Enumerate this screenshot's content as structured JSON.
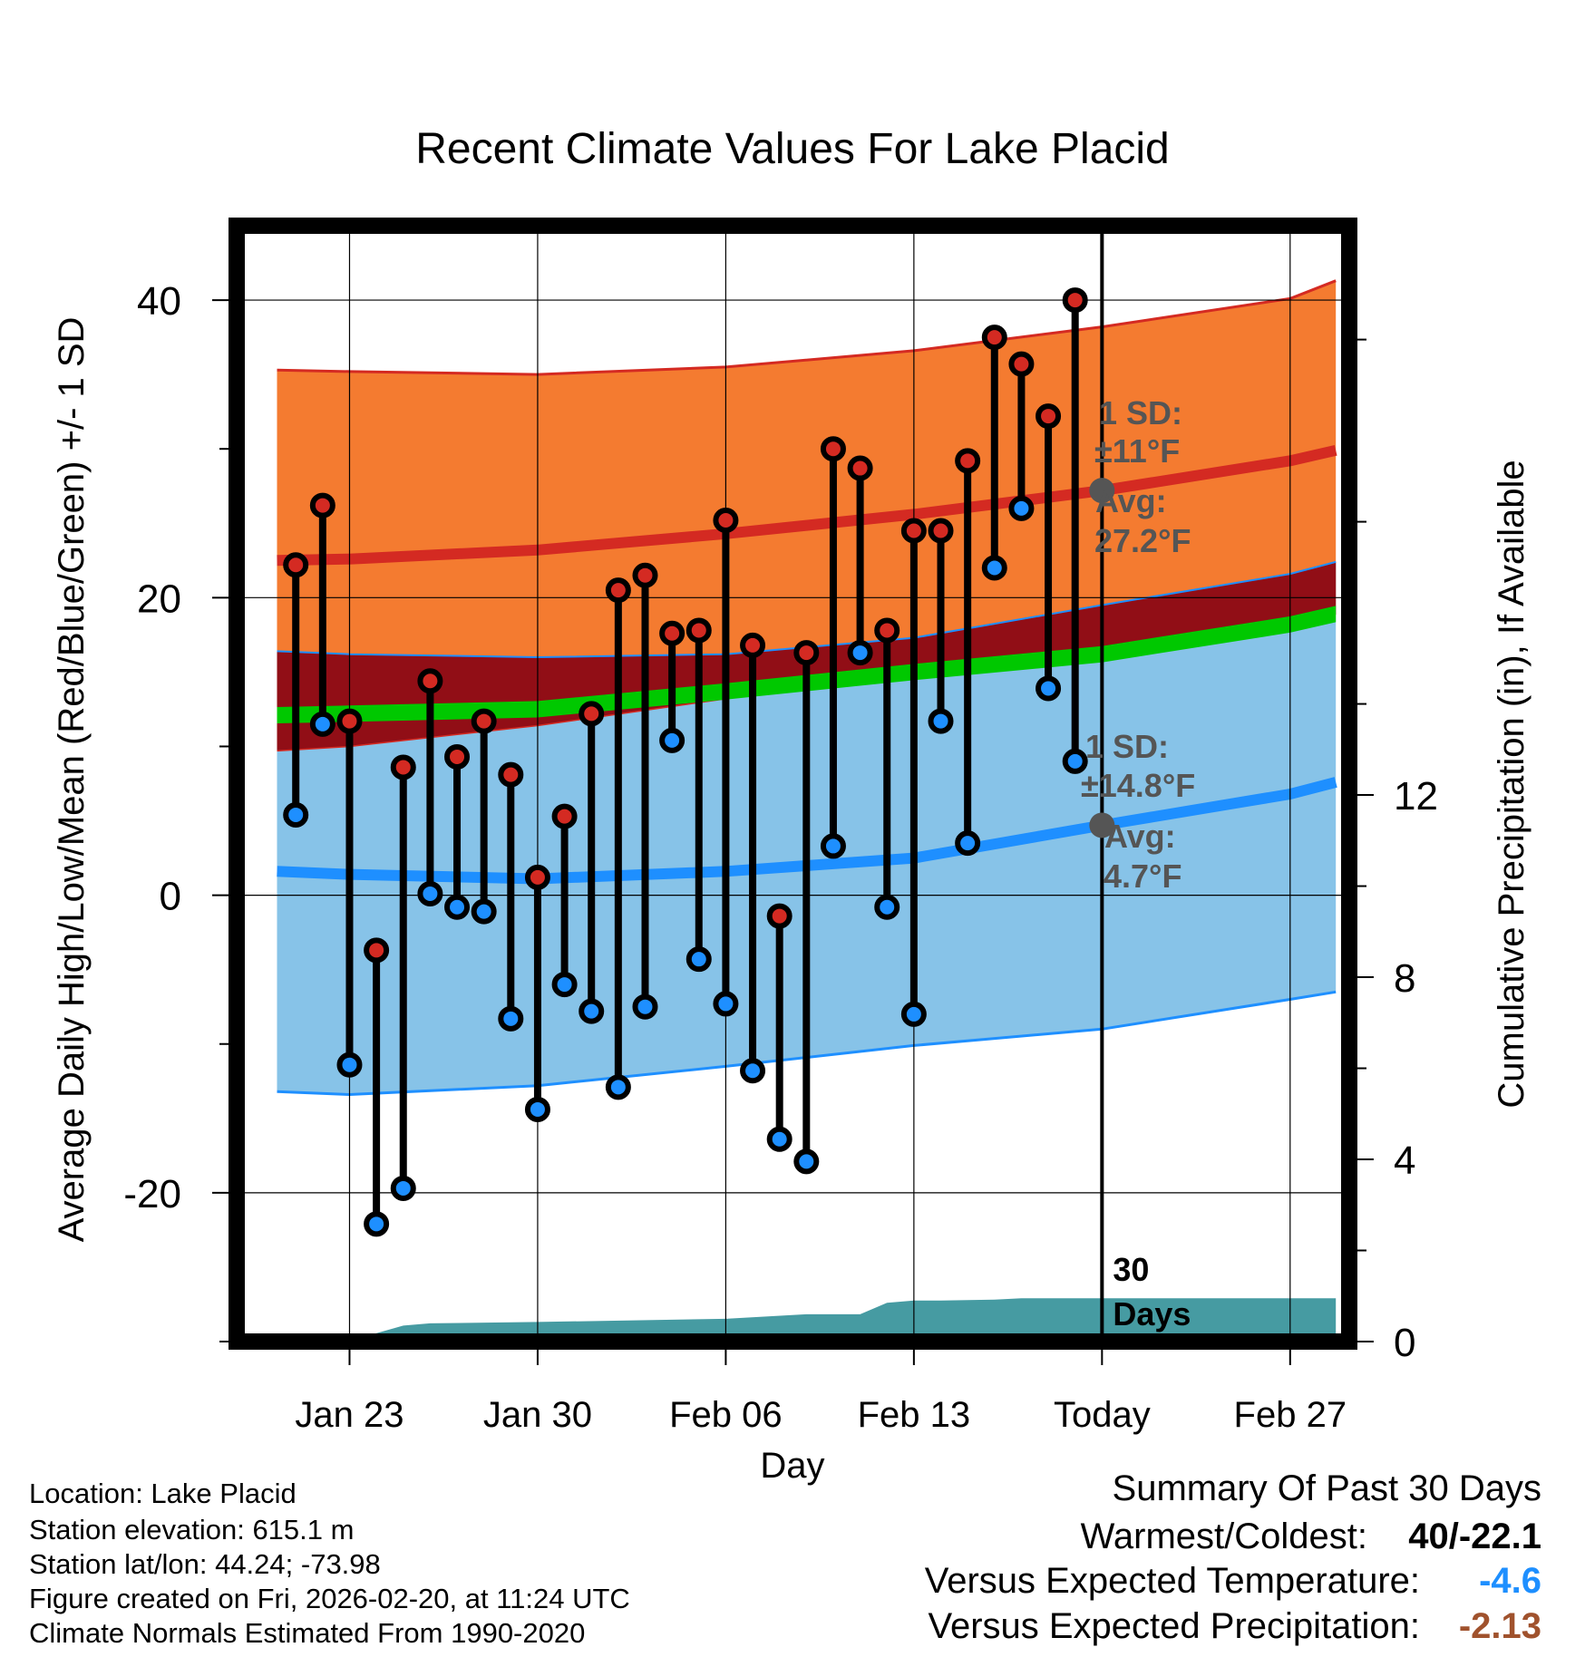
{
  "chart_data": {
    "type": "line",
    "title": "Recent Climate Values For Lake Placid",
    "xlabel": "Day",
    "ylabel": "Average Daily High/Low/Mean (Red/Blue/Green) +/- 1 SD",
    "y2label": "Cumulative Precipitation (in), If Available",
    "xlim": [
      -4.2,
      37.2
    ],
    "ylim": [
      -30,
      45
    ],
    "y2lim": [
      0,
      24.5
    ],
    "yticks": [
      -20,
      0,
      20,
      40
    ],
    "ytick_labels": [
      "-20",
      "0",
      "20",
      "40"
    ],
    "y2ticks": [
      0,
      4,
      8,
      12
    ],
    "y2tick_labels": [
      "0",
      "4",
      "8",
      "12"
    ],
    "xticks": [
      0,
      7,
      14,
      21,
      28,
      35
    ],
    "xtick_labels": [
      "Jan 23",
      "Jan 30",
      "Feb 06",
      "Feb 13",
      "Today",
      "Feb 27"
    ],
    "today_x": 28,
    "today_label": [
      "30",
      "Days"
    ],
    "normals_x": [
      -2.7,
      0,
      7,
      14,
      21,
      28,
      35,
      36.7
    ],
    "normal_high": [
      22.5,
      22.6,
      23.2,
      24.3,
      25.6,
      27.2,
      29.2,
      29.9
    ],
    "normal_high_upper": [
      35.3,
      35.2,
      35.0,
      35.5,
      36.6,
      38.2,
      40.1,
      41.3
    ],
    "normal_high_lower": [
      9.7,
      10.0,
      11.4,
      13.2,
      14.8,
      16.2,
      18.2,
      18.9
    ],
    "normal_mean": [
      12.1,
      12.2,
      12.5,
      13.7,
      15.0,
      16.2,
      18.2,
      18.9
    ],
    "normal_low": [
      1.6,
      1.4,
      1.1,
      1.6,
      2.5,
      4.7,
      6.8,
      7.6
    ],
    "normal_low_upper": [
      16.4,
      16.2,
      16.0,
      16.2,
      17.3,
      19.5,
      21.6,
      22.4
    ],
    "normal_low_lower": [
      -13.2,
      -13.4,
      -12.8,
      -11.5,
      -10.1,
      -9.0,
      -7.0,
      -6.5
    ],
    "annotations": {
      "high_sd": "1 SD:",
      "high_sd_value": "±11°F",
      "high_avg": "Avg:",
      "high_avg_value": "27.2°F",
      "low_sd": "1 SD:",
      "low_sd_value": "±14.8°F",
      "low_avg": "Avg:",
      "low_avg_value": "4.7°F"
    },
    "series": [
      {
        "name": "Daily High",
        "x": [
          -2,
          -1,
          0,
          1,
          2,
          3,
          4,
          5,
          6,
          7,
          8,
          9,
          10,
          11,
          12,
          13,
          14,
          15,
          16,
          17,
          18,
          19,
          20,
          21,
          22,
          23,
          24,
          25,
          26,
          27
        ],
        "values": [
          22.2,
          26.2,
          11.7,
          -3.7,
          8.6,
          14.4,
          9.3,
          11.7,
          8.1,
          1.2,
          5.3,
          12.2,
          20.5,
          21.5,
          17.6,
          17.8,
          25.2,
          16.8,
          -1.4,
          16.3,
          30.0,
          28.7,
          17.8,
          24.5,
          24.5,
          29.2,
          37.5,
          35.7,
          32.2,
          40.0
        ]
      },
      {
        "name": "Daily Low",
        "x": [
          -2,
          -1,
          0,
          1,
          2,
          3,
          4,
          5,
          6,
          7,
          8,
          9,
          10,
          11,
          12,
          13,
          14,
          15,
          16,
          17,
          18,
          19,
          20,
          21,
          22,
          23,
          24,
          25,
          26,
          27
        ],
        "values": [
          5.4,
          11.5,
          -11.4,
          -22.1,
          -19.7,
          0.1,
          -0.8,
          -1.1,
          -8.3,
          -14.4,
          -6.0,
          -7.8,
          -12.9,
          -7.5,
          10.4,
          -4.3,
          -7.3,
          -11.8,
          -16.4,
          -17.9,
          3.3,
          16.3,
          -0.8,
          -8.0,
          11.7,
          3.5,
          22.0,
          26.0,
          13.9,
          9.0
        ]
      },
      {
        "name": "Cumulative Precipitation",
        "x": [
          -2.7,
          -1,
          0.5,
          2,
          3,
          7,
          14,
          17,
          19,
          20,
          21,
          22,
          24,
          25,
          36.7
        ],
        "values": [
          0,
          0.1,
          0.1,
          0.35,
          0.4,
          0.43,
          0.5,
          0.6,
          0.6,
          0.85,
          0.9,
          0.9,
          0.92,
          0.95,
          0.95
        ]
      }
    ]
  },
  "footer": {
    "location": "Location: Lake Placid",
    "elevation": "Station elevation: 615.1 m",
    "latlon": "Station lat/lon: 44.24; -73.98",
    "created": "Figure created on Fri, 2026-02-20, at 11:24 UTC",
    "normals": "Climate Normals Estimated From 1990-2020"
  },
  "summary": {
    "title": "Summary Of Past 30 Days",
    "warm_cold_label": "Warmest/Coldest:",
    "warm_cold_value": "40/-22.1",
    "temp_label": "Versus Expected Temperature:",
    "temp_value": "-4.6",
    "precip_label": "Versus Expected Precipitation:",
    "precip_value": "-2.13"
  },
  "colors": {
    "high_band": "#f47b30",
    "high_line": "#d42a22",
    "overlap_band": "#910e16",
    "mean_line": "#00c800",
    "low_band": "#87c3e8",
    "low_line": "#1e8fff",
    "precip": "#469ba2",
    "marker_high": "#d42a22",
    "marker_low": "#1e8fff",
    "avg_dot": "#555555",
    "annot_text": "#555555",
    "temp_value": "#1e8fff",
    "precip_value": "#a0522d"
  }
}
